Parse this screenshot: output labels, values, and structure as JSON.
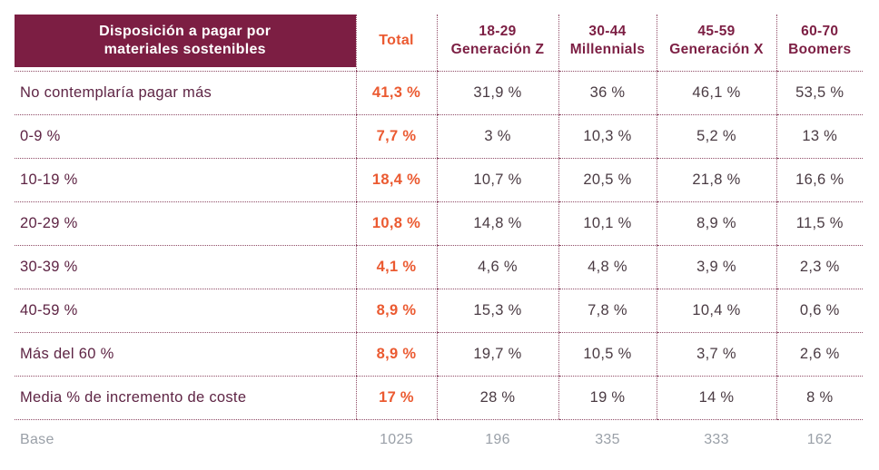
{
  "colors": {
    "header_bg": "#7c1e43",
    "accent_orange": "#eb5a31",
    "label_color": "#5e2444",
    "value_color": "#4a3b43",
    "base_color": "#9aa0a8",
    "line_color": "#8f4b66"
  },
  "table": {
    "title": "Disposición a pagar por materiales sostenibles",
    "total_label": "Total",
    "columns": [
      {
        "line1": "18-29",
        "line2": "Generación Z"
      },
      {
        "line1": "30-44",
        "line2": "Millennials"
      },
      {
        "line1": "45-59",
        "line2": "Generación X"
      },
      {
        "line1": "60-70",
        "line2": "Boomers"
      }
    ],
    "rows": [
      {
        "label": "No contemplaría pagar más",
        "total": "41,3 %",
        "values": [
          "31,9 %",
          "36 %",
          "46,1 %",
          "53,5 %"
        ]
      },
      {
        "label": "0-9 %",
        "total": "7,7 %",
        "values": [
          "3 %",
          "10,3 %",
          "5,2 %",
          "13 %"
        ]
      },
      {
        "label": "10-19 %",
        "total": "18,4 %",
        "values": [
          "10,7 %",
          "20,5 %",
          "21,8 %",
          "16,6 %"
        ]
      },
      {
        "label": "20-29 %",
        "total": "10,8 %",
        "values": [
          "14,8 %",
          "10,1 %",
          "8,9 %",
          "11,5 %"
        ]
      },
      {
        "label": "30-39 %",
        "total": "4,1 %",
        "values": [
          "4,6 %",
          "4,8 %",
          "3,9 %",
          "2,3 %"
        ]
      },
      {
        "label": "40-59 %",
        "total": "8,9 %",
        "values": [
          "15,3 %",
          "7,8 %",
          "10,4 %",
          "0,6 %"
        ]
      },
      {
        "label": "Más del 60 %",
        "total": "8,9 %",
        "values": [
          "19,7 %",
          "10,5 %",
          "3,7 %",
          "2,6 %"
        ]
      },
      {
        "label": "Media % de incremento de coste",
        "total": "17 %",
        "values": [
          "28 %",
          "19 %",
          "14 %",
          "8 %"
        ]
      }
    ],
    "base": {
      "label": "Base",
      "total": "1025",
      "values": [
        "196",
        "335",
        "333",
        "162"
      ]
    }
  },
  "chart_data": {
    "type": "table",
    "title": "Disposición a pagar por materiales sostenibles",
    "columns": [
      "Total",
      "18-29 Generación Z",
      "30-44 Millennials",
      "45-59 Generación X",
      "60-70 Boomers"
    ],
    "rows": [
      {
        "label": "No contemplaría pagar más",
        "values": [
          41.3,
          31.9,
          36,
          46.1,
          53.5
        ],
        "unit": "%"
      },
      {
        "label": "0-9 %",
        "values": [
          7.7,
          3,
          10.3,
          5.2,
          13
        ],
        "unit": "%"
      },
      {
        "label": "10-19 %",
        "values": [
          18.4,
          10.7,
          20.5,
          21.8,
          16.6
        ],
        "unit": "%"
      },
      {
        "label": "20-29 %",
        "values": [
          10.8,
          14.8,
          10.1,
          8.9,
          11.5
        ],
        "unit": "%"
      },
      {
        "label": "30-39 %",
        "values": [
          4.1,
          4.6,
          4.8,
          3.9,
          2.3
        ],
        "unit": "%"
      },
      {
        "label": "40-59 %",
        "values": [
          8.9,
          15.3,
          7.8,
          10.4,
          0.6
        ],
        "unit": "%"
      },
      {
        "label": "Más del 60 %",
        "values": [
          8.9,
          19.7,
          10.5,
          3.7,
          2.6
        ],
        "unit": "%"
      },
      {
        "label": "Media % de incremento de coste",
        "values": [
          17,
          28,
          19,
          14,
          8
        ],
        "unit": "%"
      },
      {
        "label": "Base",
        "values": [
          1025,
          196,
          335,
          333,
          162
        ],
        "unit": "count"
      }
    ]
  }
}
